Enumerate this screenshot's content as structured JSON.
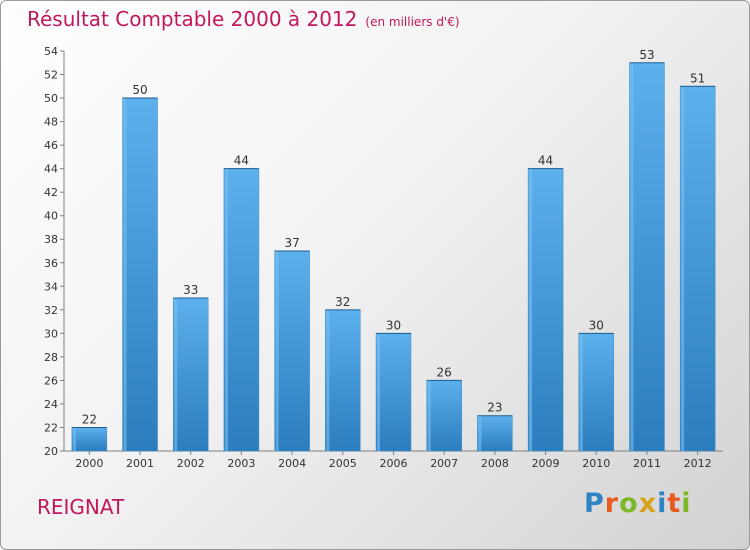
{
  "header": {
    "title": "Résultat Comptable 2000 à 2012",
    "subtitle": "(en milliers d'€)"
  },
  "footer": {
    "town": "REIGNAT",
    "logo": "Proxiti"
  },
  "colors": {
    "bar": "#4a9edb",
    "bar_light": "#5cb0ec",
    "bar_dark": "#2b7dbd",
    "title": "#c2185b"
  },
  "chart_data": {
    "type": "bar",
    "title": "Résultat Comptable 2000 à 2012",
    "subtitle": "(en milliers d'€)",
    "categories": [
      "2000",
      "2001",
      "2002",
      "2003",
      "2004",
      "2005",
      "2006",
      "2007",
      "2008",
      "2009",
      "2010",
      "2011",
      "2012"
    ],
    "values": [
      22,
      50,
      33,
      44,
      37,
      32,
      30,
      26,
      23,
      44,
      30,
      53,
      51
    ],
    "ylim": [
      20,
      54
    ],
    "yticks": [
      20,
      22,
      24,
      26,
      28,
      30,
      32,
      34,
      36,
      38,
      40,
      42,
      44,
      46,
      48,
      50,
      52,
      54
    ],
    "grid": false,
    "data_labels": true
  }
}
